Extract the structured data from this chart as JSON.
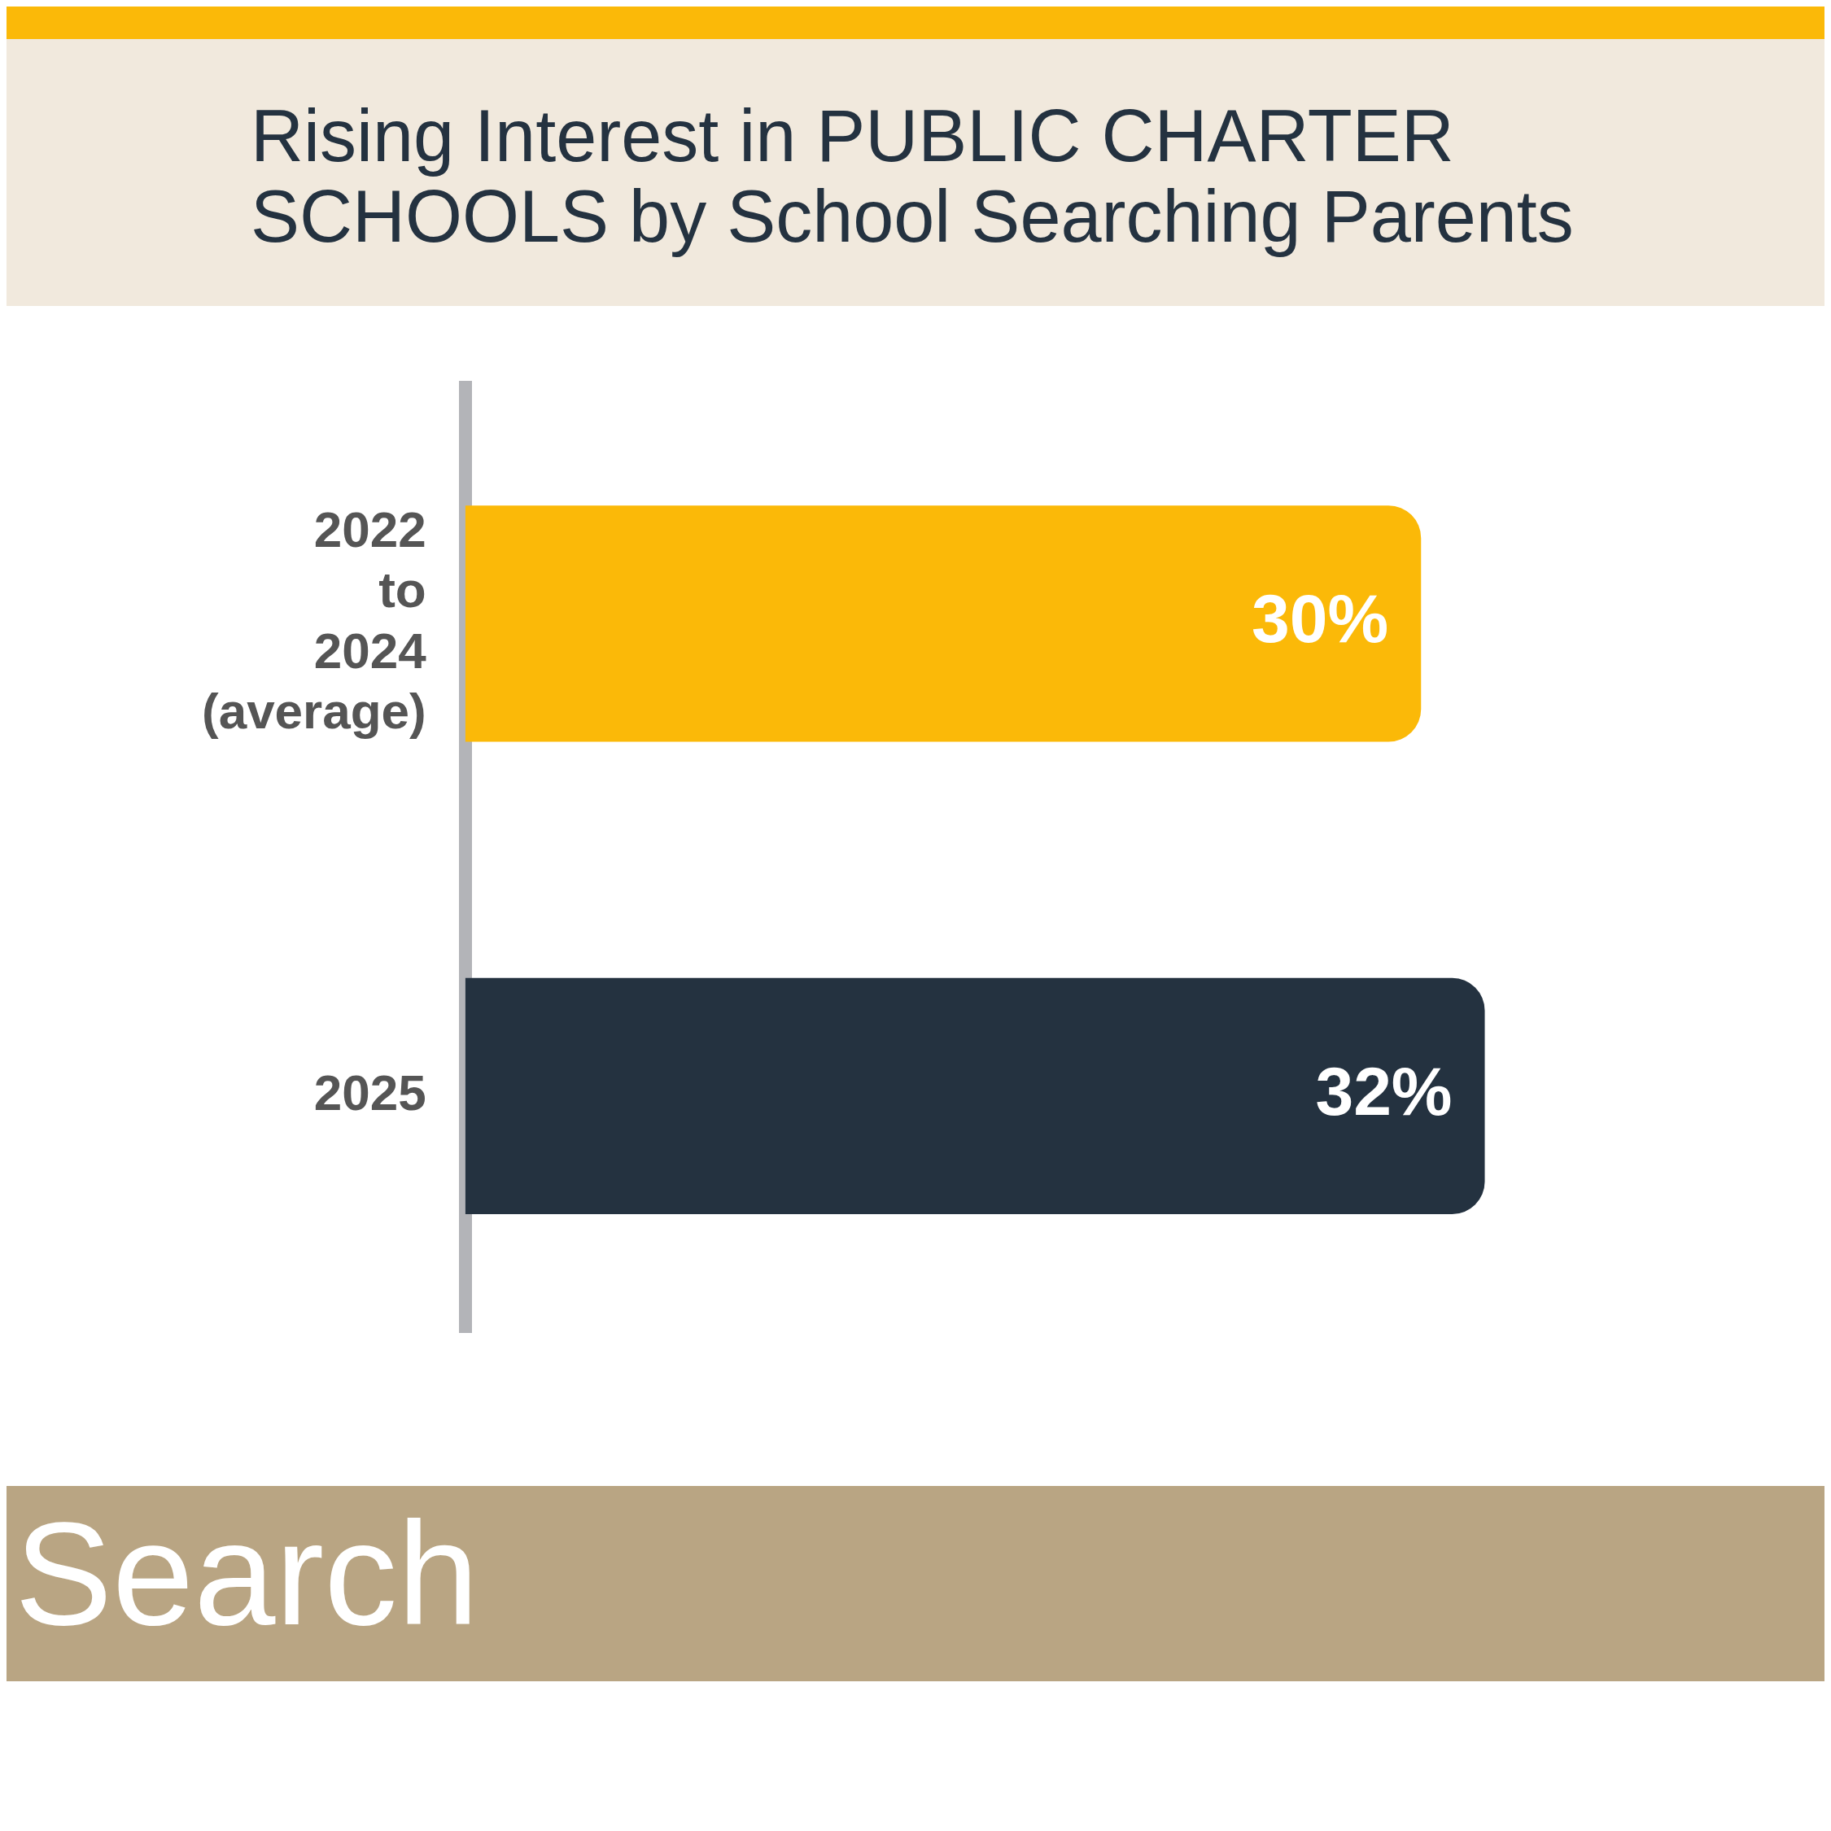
{
  "chart_data": {
    "type": "bar",
    "orientation": "horizontal",
    "title": "Rising Interest in PUBLIC CHARTER SCHOOLS by School Searching Parents",
    "categories": [
      "2022 to 2024 (average)",
      "2025"
    ],
    "values": [
      30,
      32
    ],
    "colors": [
      "#fbb908",
      "#243240"
    ],
    "value_labels": [
      "30%",
      "32%"
    ],
    "tick_labels": "y",
    "legend": false,
    "annotations": [
      "Search"
    ]
  }
}
